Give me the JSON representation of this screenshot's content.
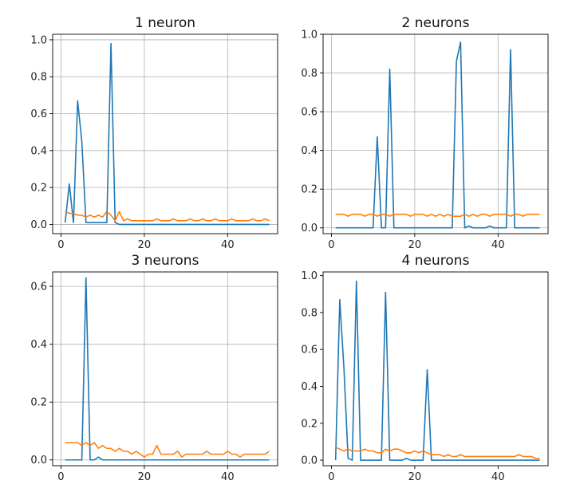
{
  "chart_data": [
    {
      "type": "line",
      "title": "1 neuron",
      "xlabel": "",
      "ylabel": "",
      "xlim": [
        -2,
        52
      ],
      "ylim": [
        -0.05,
        1.03
      ],
      "xticks": [
        0,
        20,
        40
      ],
      "xtick_labels": [
        "0",
        "20",
        "40"
      ],
      "yticks": [
        0.0,
        0.2,
        0.4,
        0.6,
        0.8,
        1.0
      ],
      "ytick_labels": [
        "0.0",
        "0.2",
        "0.4",
        "0.6",
        "0.8",
        "1.0"
      ],
      "grid": true,
      "series": [
        {
          "color": "#1f77b4",
          "x": [
            1,
            2,
            3,
            4,
            5,
            6,
            7,
            8,
            9,
            10,
            11,
            12,
            13,
            14,
            15,
            16,
            17,
            18,
            19,
            20,
            21,
            22,
            23,
            24,
            25,
            26,
            27,
            28,
            29,
            30,
            31,
            32,
            33,
            34,
            35,
            36,
            37,
            38,
            39,
            40,
            41,
            42,
            43,
            44,
            45,
            46,
            47,
            48,
            49,
            50
          ],
          "y": [
            0.01,
            0.22,
            0.01,
            0.67,
            0.45,
            0.01,
            0.01,
            0.01,
            0.01,
            0.01,
            0.01,
            0.98,
            0.01,
            0.0,
            0.0,
            0.0,
            0.0,
            0.0,
            0.0,
            0.0,
            0.0,
            0.0,
            0.0,
            0.0,
            0.0,
            0.0,
            0.0,
            0.0,
            0.0,
            0.0,
            0.0,
            0.0,
            0.0,
            0.0,
            0.0,
            0.0,
            0.0,
            0.0,
            0.0,
            0.0,
            0.0,
            0.0,
            0.0,
            0.0,
            0.0,
            0.0,
            0.0,
            0.0,
            0.0,
            0.0
          ]
        },
        {
          "color": "#ff7f0e",
          "x": [
            1,
            2,
            3,
            4,
            5,
            6,
            7,
            8,
            9,
            10,
            11,
            12,
            13,
            14,
            15,
            16,
            17,
            18,
            19,
            20,
            21,
            22,
            23,
            24,
            25,
            26,
            27,
            28,
            29,
            30,
            31,
            32,
            33,
            34,
            35,
            36,
            37,
            38,
            39,
            40,
            41,
            42,
            43,
            44,
            45,
            46,
            47,
            48,
            49,
            50
          ],
          "y": [
            0.07,
            0.06,
            0.06,
            0.05,
            0.05,
            0.04,
            0.05,
            0.04,
            0.05,
            0.04,
            0.07,
            0.05,
            0.02,
            0.07,
            0.02,
            0.03,
            0.02,
            0.02,
            0.02,
            0.02,
            0.02,
            0.02,
            0.03,
            0.02,
            0.02,
            0.02,
            0.03,
            0.02,
            0.02,
            0.02,
            0.03,
            0.02,
            0.02,
            0.03,
            0.02,
            0.02,
            0.03,
            0.02,
            0.02,
            0.02,
            0.03,
            0.02,
            0.02,
            0.02,
            0.02,
            0.03,
            0.02,
            0.02,
            0.03,
            0.02
          ]
        }
      ]
    },
    {
      "type": "line",
      "title": "2 neurons",
      "xlabel": "",
      "ylabel": "",
      "xlim": [
        -2,
        52
      ],
      "ylim": [
        -0.03,
        1.0
      ],
      "xticks": [
        0,
        20,
        40
      ],
      "xtick_labels": [
        "0",
        "20",
        "40"
      ],
      "yticks": [
        0.0,
        0.2,
        0.4,
        0.6,
        0.8,
        1.0
      ],
      "ytick_labels": [
        "0.0",
        "0.2",
        "0.4",
        "0.6",
        "0.8",
        "1.0"
      ],
      "grid": true,
      "series": [
        {
          "color": "#1f77b4",
          "x": [
            1,
            2,
            3,
            4,
            5,
            6,
            7,
            8,
            9,
            10,
            11,
            12,
            13,
            14,
            15,
            16,
            17,
            18,
            19,
            20,
            21,
            22,
            23,
            24,
            25,
            26,
            27,
            28,
            29,
            30,
            31,
            32,
            33,
            34,
            35,
            36,
            37,
            38,
            39,
            40,
            41,
            42,
            43,
            44,
            45,
            46,
            47,
            48,
            49,
            50
          ],
          "y": [
            0.0,
            0.0,
            0.0,
            0.0,
            0.0,
            0.0,
            0.0,
            0.0,
            0.0,
            0.0,
            0.47,
            0.0,
            0.0,
            0.82,
            0.0,
            0.0,
            0.0,
            0.0,
            0.0,
            0.0,
            0.0,
            0.0,
            0.0,
            0.0,
            0.0,
            0.0,
            0.0,
            0.0,
            0.0,
            0.86,
            0.96,
            0.0,
            0.01,
            0.0,
            0.0,
            0.0,
            0.0,
            0.01,
            0.0,
            0.0,
            0.0,
            0.0,
            0.92,
            0.0,
            0.0,
            0.0,
            0.0,
            0.0,
            0.0,
            0.0
          ]
        },
        {
          "color": "#ff7f0e",
          "x": [
            1,
            2,
            3,
            4,
            5,
            6,
            7,
            8,
            9,
            10,
            11,
            12,
            13,
            14,
            15,
            16,
            17,
            18,
            19,
            20,
            21,
            22,
            23,
            24,
            25,
            26,
            27,
            28,
            29,
            30,
            31,
            32,
            33,
            34,
            35,
            36,
            37,
            38,
            39,
            40,
            41,
            42,
            43,
            44,
            45,
            46,
            47,
            48,
            49,
            50
          ],
          "y": [
            0.07,
            0.07,
            0.07,
            0.06,
            0.07,
            0.07,
            0.07,
            0.06,
            0.07,
            0.07,
            0.06,
            0.07,
            0.07,
            0.06,
            0.07,
            0.07,
            0.07,
            0.07,
            0.06,
            0.07,
            0.07,
            0.07,
            0.06,
            0.07,
            0.06,
            0.07,
            0.06,
            0.07,
            0.06,
            0.06,
            0.06,
            0.07,
            0.06,
            0.07,
            0.06,
            0.07,
            0.07,
            0.06,
            0.07,
            0.07,
            0.07,
            0.07,
            0.06,
            0.07,
            0.07,
            0.06,
            0.07,
            0.07,
            0.07,
            0.07
          ]
        }
      ]
    },
    {
      "type": "line",
      "title": "3 neurons",
      "xlabel": "",
      "ylabel": "",
      "xlim": [
        -2,
        52
      ],
      "ylim": [
        -0.02,
        0.65
      ],
      "xticks": [
        0,
        20,
        40
      ],
      "xtick_labels": [
        "0",
        "20",
        "40"
      ],
      "yticks": [
        0.0,
        0.2,
        0.4,
        0.6
      ],
      "ytick_labels": [
        "0.0",
        "0.2",
        "0.4",
        "0.6"
      ],
      "grid": true,
      "series": [
        {
          "color": "#1f77b4",
          "x": [
            1,
            2,
            3,
            4,
            5,
            6,
            7,
            8,
            9,
            10,
            11,
            12,
            13,
            14,
            15,
            16,
            17,
            18,
            19,
            20,
            21,
            22,
            23,
            24,
            25,
            26,
            27,
            28,
            29,
            30,
            31,
            32,
            33,
            34,
            35,
            36,
            37,
            38,
            39,
            40,
            41,
            42,
            43,
            44,
            45,
            46,
            47,
            48,
            49,
            50
          ],
          "y": [
            0.0,
            0.0,
            0.0,
            0.0,
            0.0,
            0.63,
            0.0,
            0.0,
            0.01,
            0.0,
            0.0,
            0.0,
            0.0,
            0.0,
            0.0,
            0.0,
            0.0,
            0.0,
            0.0,
            0.0,
            0.0,
            0.0,
            0.0,
            0.0,
            0.0,
            0.0,
            0.0,
            0.0,
            0.0,
            0.0,
            0.0,
            0.0,
            0.0,
            0.0,
            0.0,
            0.0,
            0.0,
            0.0,
            0.0,
            0.0,
            0.0,
            0.0,
            0.0,
            0.0,
            0.0,
            0.0,
            0.0,
            0.0,
            0.0,
            0.0
          ]
        },
        {
          "color": "#ff7f0e",
          "x": [
            1,
            2,
            3,
            4,
            5,
            6,
            7,
            8,
            9,
            10,
            11,
            12,
            13,
            14,
            15,
            16,
            17,
            18,
            19,
            20,
            21,
            22,
            23,
            24,
            25,
            26,
            27,
            28,
            29,
            30,
            31,
            32,
            33,
            34,
            35,
            36,
            37,
            38,
            39,
            40,
            41,
            42,
            43,
            44,
            45,
            46,
            47,
            48,
            49,
            50
          ],
          "y": [
            0.06,
            0.06,
            0.06,
            0.06,
            0.05,
            0.06,
            0.05,
            0.06,
            0.04,
            0.05,
            0.04,
            0.04,
            0.03,
            0.04,
            0.03,
            0.03,
            0.02,
            0.03,
            0.02,
            0.01,
            0.02,
            0.02,
            0.05,
            0.02,
            0.02,
            0.02,
            0.02,
            0.03,
            0.01,
            0.02,
            0.02,
            0.02,
            0.02,
            0.02,
            0.03,
            0.02,
            0.02,
            0.02,
            0.02,
            0.03,
            0.02,
            0.02,
            0.01,
            0.02,
            0.02,
            0.02,
            0.02,
            0.02,
            0.02,
            0.03
          ]
        }
      ]
    },
    {
      "type": "line",
      "title": "4 neurons",
      "xlabel": "",
      "ylabel": "",
      "xlim": [
        -2,
        52
      ],
      "ylim": [
        -0.03,
        1.02
      ],
      "xticks": [
        0,
        20,
        40
      ],
      "xtick_labels": [
        "0",
        "20",
        "40"
      ],
      "yticks": [
        0.0,
        0.2,
        0.4,
        0.6,
        0.8,
        1.0
      ],
      "ytick_labels": [
        "0.0",
        "0.2",
        "0.4",
        "0.6",
        "0.8",
        "1.0"
      ],
      "grid": false,
      "series": [
        {
          "color": "#1f77b4",
          "x": [
            1,
            2,
            3,
            4,
            5,
            6,
            7,
            8,
            9,
            10,
            11,
            12,
            13,
            14,
            15,
            16,
            17,
            18,
            19,
            20,
            21,
            22,
            23,
            24,
            25,
            26,
            27,
            28,
            29,
            30,
            31,
            32,
            33,
            34,
            35,
            36,
            37,
            38,
            39,
            40,
            41,
            42,
            43,
            44,
            45,
            46,
            47,
            48,
            49,
            50
          ],
          "y": [
            0.0,
            0.87,
            0.5,
            0.01,
            0.0,
            0.97,
            0.0,
            0.0,
            0.0,
            0.0,
            0.0,
            0.0,
            0.91,
            0.0,
            0.0,
            0.0,
            0.0,
            0.01,
            0.0,
            0.0,
            0.0,
            0.0,
            0.49,
            0.0,
            0.0,
            0.0,
            0.0,
            0.0,
            0.0,
            0.0,
            0.0,
            0.0,
            0.0,
            0.0,
            0.0,
            0.0,
            0.0,
            0.0,
            0.0,
            0.0,
            0.0,
            0.0,
            0.0,
            0.0,
            0.0,
            0.0,
            0.0,
            0.0,
            0.0,
            0.0
          ]
        },
        {
          "color": "#ff7f0e",
          "x": [
            1,
            2,
            3,
            4,
            5,
            6,
            7,
            8,
            9,
            10,
            11,
            12,
            13,
            14,
            15,
            16,
            17,
            18,
            19,
            20,
            21,
            22,
            23,
            24,
            25,
            26,
            27,
            28,
            29,
            30,
            31,
            32,
            33,
            34,
            35,
            36,
            37,
            38,
            39,
            40,
            41,
            42,
            43,
            44,
            45,
            46,
            47,
            48,
            49,
            50
          ],
          "y": [
            0.07,
            0.06,
            0.05,
            0.06,
            0.05,
            0.05,
            0.05,
            0.06,
            0.05,
            0.05,
            0.04,
            0.04,
            0.06,
            0.05,
            0.06,
            0.06,
            0.05,
            0.04,
            0.04,
            0.05,
            0.04,
            0.05,
            0.04,
            0.03,
            0.03,
            0.03,
            0.02,
            0.03,
            0.02,
            0.02,
            0.03,
            0.02,
            0.02,
            0.02,
            0.02,
            0.02,
            0.02,
            0.02,
            0.02,
            0.02,
            0.02,
            0.02,
            0.02,
            0.02,
            0.03,
            0.02,
            0.02,
            0.02,
            0.01,
            0.01
          ]
        }
      ]
    }
  ]
}
